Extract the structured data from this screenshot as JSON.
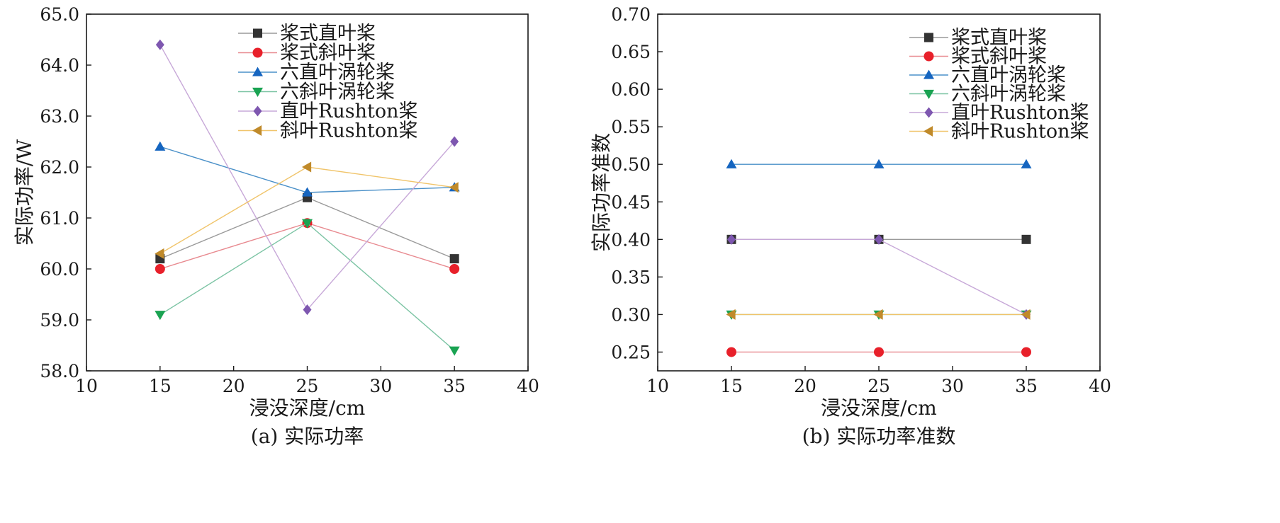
{
  "chart_data": [
    {
      "type": "line",
      "caption": "(a) 实际功率",
      "xlabel": "浸没深度/cm",
      "ylabel": "实际功率/W",
      "x": [
        15,
        25,
        35
      ],
      "xlim": [
        10,
        40
      ],
      "ylim": [
        58.0,
        65.0
      ],
      "xticks": [
        "10",
        "15",
        "20",
        "25",
        "30",
        "35",
        "40"
      ],
      "yticks": [
        "58.0",
        "59.0",
        "60.0",
        "61.0",
        "62.0",
        "63.0",
        "64.0",
        "65.0"
      ],
      "legend_position": "top-right",
      "grid": false,
      "series": [
        {
          "name": "桨式直叶桨",
          "marker": "square",
          "color": "#333333",
          "line": "#9a9a9a",
          "values": [
            60.2,
            61.4,
            60.2
          ]
        },
        {
          "name": "桨式斜叶桨",
          "marker": "circle",
          "color": "#e8202a",
          "line": "#e88a90",
          "values": [
            60.0,
            60.9,
            60.0
          ]
        },
        {
          "name": "六直叶涡轮桨",
          "marker": "triangle-up",
          "color": "#1565c0",
          "line": "#4a90c8",
          "values": [
            62.4,
            61.5,
            61.6
          ]
        },
        {
          "name": "六斜叶涡轮桨",
          "marker": "triangle-down",
          "color": "#1aa352",
          "line": "#7cc4a4",
          "values": [
            59.1,
            60.9,
            58.4
          ]
        },
        {
          "name": "直叶Rushton桨",
          "marker": "diamond",
          "color": "#7e57b0",
          "line": "#c7a8d8",
          "values": [
            64.4,
            59.2,
            62.5
          ]
        },
        {
          "name": "斜叶Rushton桨",
          "marker": "triangle-left",
          "color": "#c08a2a",
          "line": "#f0c46a",
          "values": [
            60.3,
            62.0,
            61.6
          ]
        }
      ]
    },
    {
      "type": "line",
      "caption": "(b) 实际功率准数",
      "xlabel": "浸没深度/cm",
      "ylabel": "实际功率准数",
      "x": [
        15,
        25,
        35
      ],
      "xlim": [
        10,
        40
      ],
      "ylim": [
        0.225,
        0.7
      ],
      "xticks": [
        "10",
        "15",
        "20",
        "25",
        "30",
        "35",
        "40"
      ],
      "yticks": [
        "0.25",
        "0.30",
        "0.35",
        "0.40",
        "0.45",
        "0.50",
        "0.55",
        "0.60",
        "0.65",
        "0.70"
      ],
      "legend_position": "top-right",
      "grid": false,
      "series": [
        {
          "name": "桨式直叶桨",
          "marker": "square",
          "color": "#333333",
          "line": "#9a9a9a",
          "values": [
            0.4,
            0.4,
            0.4
          ]
        },
        {
          "name": "桨式斜叶桨",
          "marker": "circle",
          "color": "#e8202a",
          "line": "#e88a90",
          "values": [
            0.25,
            0.25,
            0.25
          ]
        },
        {
          "name": "六直叶涡轮桨",
          "marker": "triangle-up",
          "color": "#1565c0",
          "line": "#4a90c8",
          "values": [
            0.5,
            0.5,
            0.5
          ]
        },
        {
          "name": "六斜叶涡轮桨",
          "marker": "triangle-down",
          "color": "#1aa352",
          "line": "#7cc4a4",
          "values": [
            0.3,
            0.3,
            0.3
          ]
        },
        {
          "name": "直叶Rushton桨",
          "marker": "diamond",
          "color": "#7e57b0",
          "line": "#c7a8d8",
          "values": [
            0.4,
            0.4,
            0.3
          ]
        },
        {
          "name": "斜叶Rushton桨",
          "marker": "triangle-left",
          "color": "#c08a2a",
          "line": "#f0c46a",
          "values": [
            0.3,
            0.3,
            0.3
          ]
        }
      ]
    }
  ]
}
